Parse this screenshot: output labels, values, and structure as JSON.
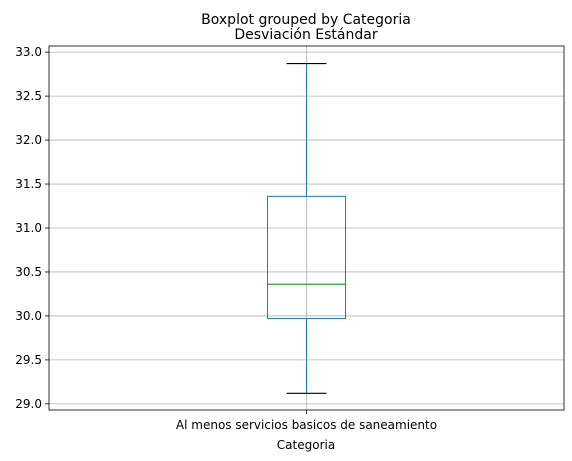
{
  "chart_data": {
    "type": "boxplot",
    "suptitle": "Boxplot grouped by Categoria",
    "title": "Desviación Estándar",
    "xlabel": "Categoria",
    "ylabel": "",
    "categories": [
      "Al menos servicios basicos de saneamiento"
    ],
    "boxes": [
      {
        "category": "Al menos servicios basicos de saneamiento",
        "whisker_low": 29.12,
        "q1": 29.97,
        "median": 30.36,
        "q3": 31.36,
        "whisker_high": 32.87
      }
    ],
    "ylim": [
      28.93,
      33.07
    ],
    "yticks": [
      29.0,
      29.5,
      30.0,
      30.5,
      31.0,
      31.5,
      32.0,
      32.5,
      33.0
    ],
    "ytick_labels": [
      "29.0",
      "29.5",
      "30.0",
      "30.5",
      "31.0",
      "31.5",
      "32.0",
      "32.5",
      "33.0"
    ],
    "grid": true,
    "colors": {
      "box": "#1f77b4",
      "median": "#2ca02c",
      "whisker": "#1f77b4",
      "cap": "#000000",
      "grid": "#b0b0b0"
    }
  }
}
